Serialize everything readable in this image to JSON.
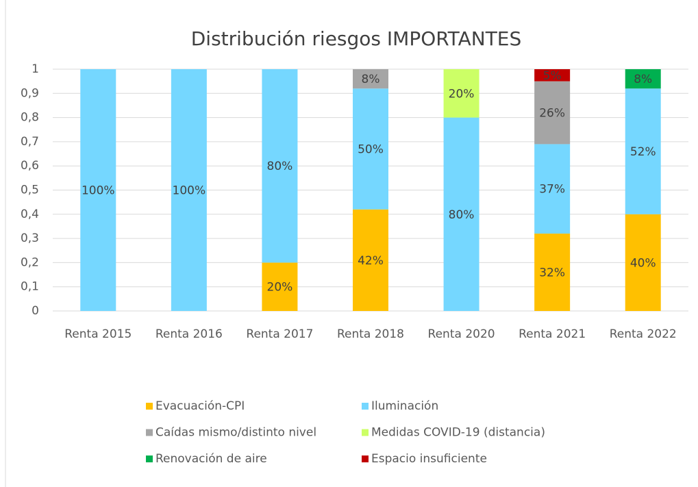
{
  "chart_data": {
    "type": "stacked_bar",
    "title": "Distribución riesgos IMPORTANTES",
    "categories": [
      "Renta 2015",
      "Renta 2016",
      "Renta 2017",
      "Renta 2018",
      "Renta 2020",
      "Renta 2021",
      "Renta 2022"
    ],
    "series": [
      {
        "name": "Evacuación-CPI",
        "color": "#ffc000",
        "values": [
          null,
          null,
          0.2,
          0.42,
          null,
          0.32,
          0.4
        ],
        "value_labels": [
          null,
          null,
          "20%",
          "42%",
          null,
          "32%",
          "40%"
        ]
      },
      {
        "name": "Iluminación",
        "color": "#75d7ff",
        "values": [
          1,
          1,
          0.8,
          0.5,
          0.8,
          0.37,
          0.52
        ],
        "value_labels": [
          "100%",
          "100%",
          "80%",
          "50%",
          "80%",
          "37%",
          "52%"
        ]
      },
      {
        "name": "Caídas mismo/distinto nivel",
        "color": "#a5a5a5",
        "values": [
          null,
          null,
          null,
          0.08,
          null,
          0.26,
          null
        ],
        "value_labels": [
          null,
          null,
          null,
          "8%",
          null,
          "26%",
          null
        ]
      },
      {
        "name": "Medidas COVID-19 (distancia)",
        "color": "#ccff66",
        "values": [
          null,
          null,
          null,
          null,
          0.2,
          null,
          null
        ],
        "value_labels": [
          null,
          null,
          null,
          null,
          "20%",
          null,
          null
        ]
      },
      {
        "name": "Renovación de aire",
        "color": "#00b050",
        "values": [
          null,
          null,
          null,
          null,
          null,
          null,
          0.08
        ],
        "value_labels": [
          null,
          null,
          null,
          null,
          null,
          null,
          "8%"
        ]
      },
      {
        "name": "Espacio insuficiente",
        "color": "#c00000",
        "values": [
          null,
          null,
          null,
          null,
          null,
          0.05,
          null
        ],
        "value_labels": [
          null,
          null,
          null,
          null,
          null,
          "5%",
          null
        ]
      }
    ],
    "ylim": [
      0,
      1
    ],
    "yticks": [
      0,
      {
        "value": 0.1,
        "label": "0,1"
      },
      {
        "value": 0.2,
        "label": "0,2"
      },
      {
        "value": 0.3,
        "label": "0,3"
      },
      {
        "value": 0.4,
        "label": "0,4"
      },
      {
        "value": 0.5,
        "label": "0,5"
      },
      {
        "value": 0.6,
        "label": "0,6"
      },
      {
        "value": 0.7,
        "label": "0,7"
      },
      {
        "value": 0.8,
        "label": "0,8"
      },
      {
        "value": 0.9,
        "label": "0,9"
      },
      1
    ],
    "grid": true,
    "legend": "bottom"
  }
}
